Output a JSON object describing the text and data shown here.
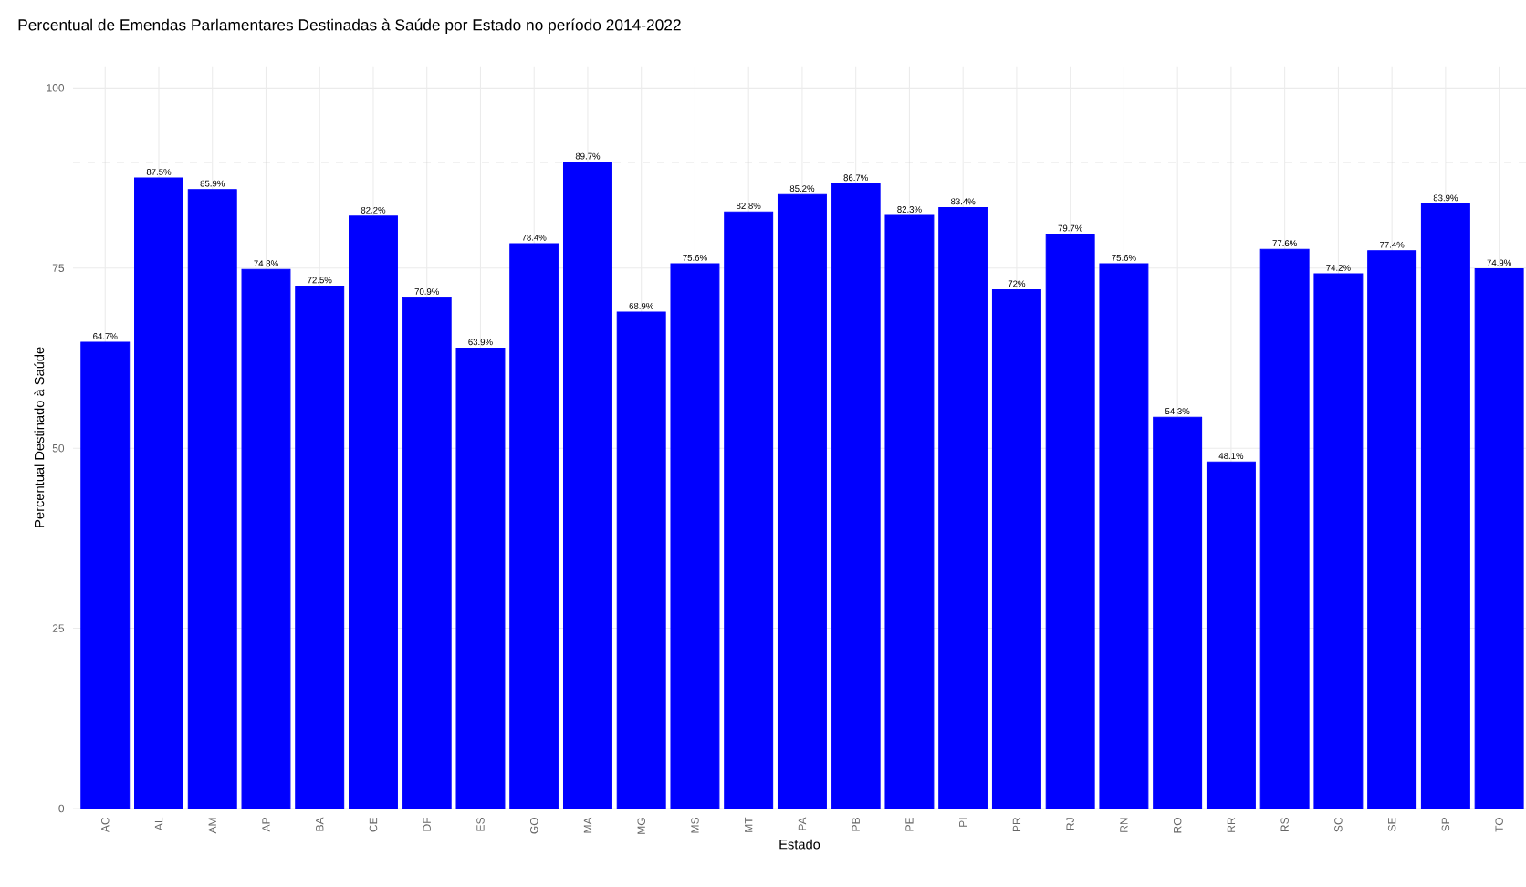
{
  "chart_data": {
    "type": "bar",
    "title": "Percentual de Emendas Parlamentares Destinadas à Saúde por Estado no período 2014-2022",
    "xlabel": "Estado",
    "ylabel": "Percentual Destinado à Saúde",
    "categories": [
      "AC",
      "AL",
      "AM",
      "AP",
      "BA",
      "CE",
      "DF",
      "ES",
      "GO",
      "MA",
      "MG",
      "MS",
      "MT",
      "PA",
      "PB",
      "PE",
      "PI",
      "PR",
      "RJ",
      "RN",
      "RO",
      "RR",
      "RS",
      "SC",
      "SE",
      "SP",
      "TO"
    ],
    "values": [
      64.7,
      87.5,
      85.9,
      74.8,
      72.5,
      82.2,
      70.9,
      63.9,
      78.4,
      89.7,
      68.9,
      75.6,
      82.8,
      85.2,
      86.7,
      82.3,
      83.4,
      72,
      79.7,
      75.6,
      54.3,
      48.1,
      77.6,
      74.2,
      77.4,
      83.9,
      74.9
    ],
    "value_labels": [
      "64.7%",
      "87.5%",
      "85.9%",
      "74.8%",
      "72.5%",
      "82.2%",
      "70.9%",
      "63.9%",
      "78.4%",
      "89.7%",
      "68.9%",
      "75.6%",
      "82.8%",
      "85.2%",
      "86.7%",
      "82.3%",
      "83.4%",
      "72%",
      "79.7%",
      "75.6%",
      "54.3%",
      "48.1%",
      "77.6%",
      "74.2%",
      "77.4%",
      "83.9%",
      "74.9%"
    ],
    "color": "#0000ff",
    "ylim": [
      0,
      103
    ],
    "yticks": [
      0,
      25,
      50,
      75,
      100
    ],
    "grid": true,
    "ref_lines": [
      {
        "axis": "y",
        "value": 89.7,
        "color": "#c8c8c8",
        "line_style": "dashed"
      }
    ]
  }
}
